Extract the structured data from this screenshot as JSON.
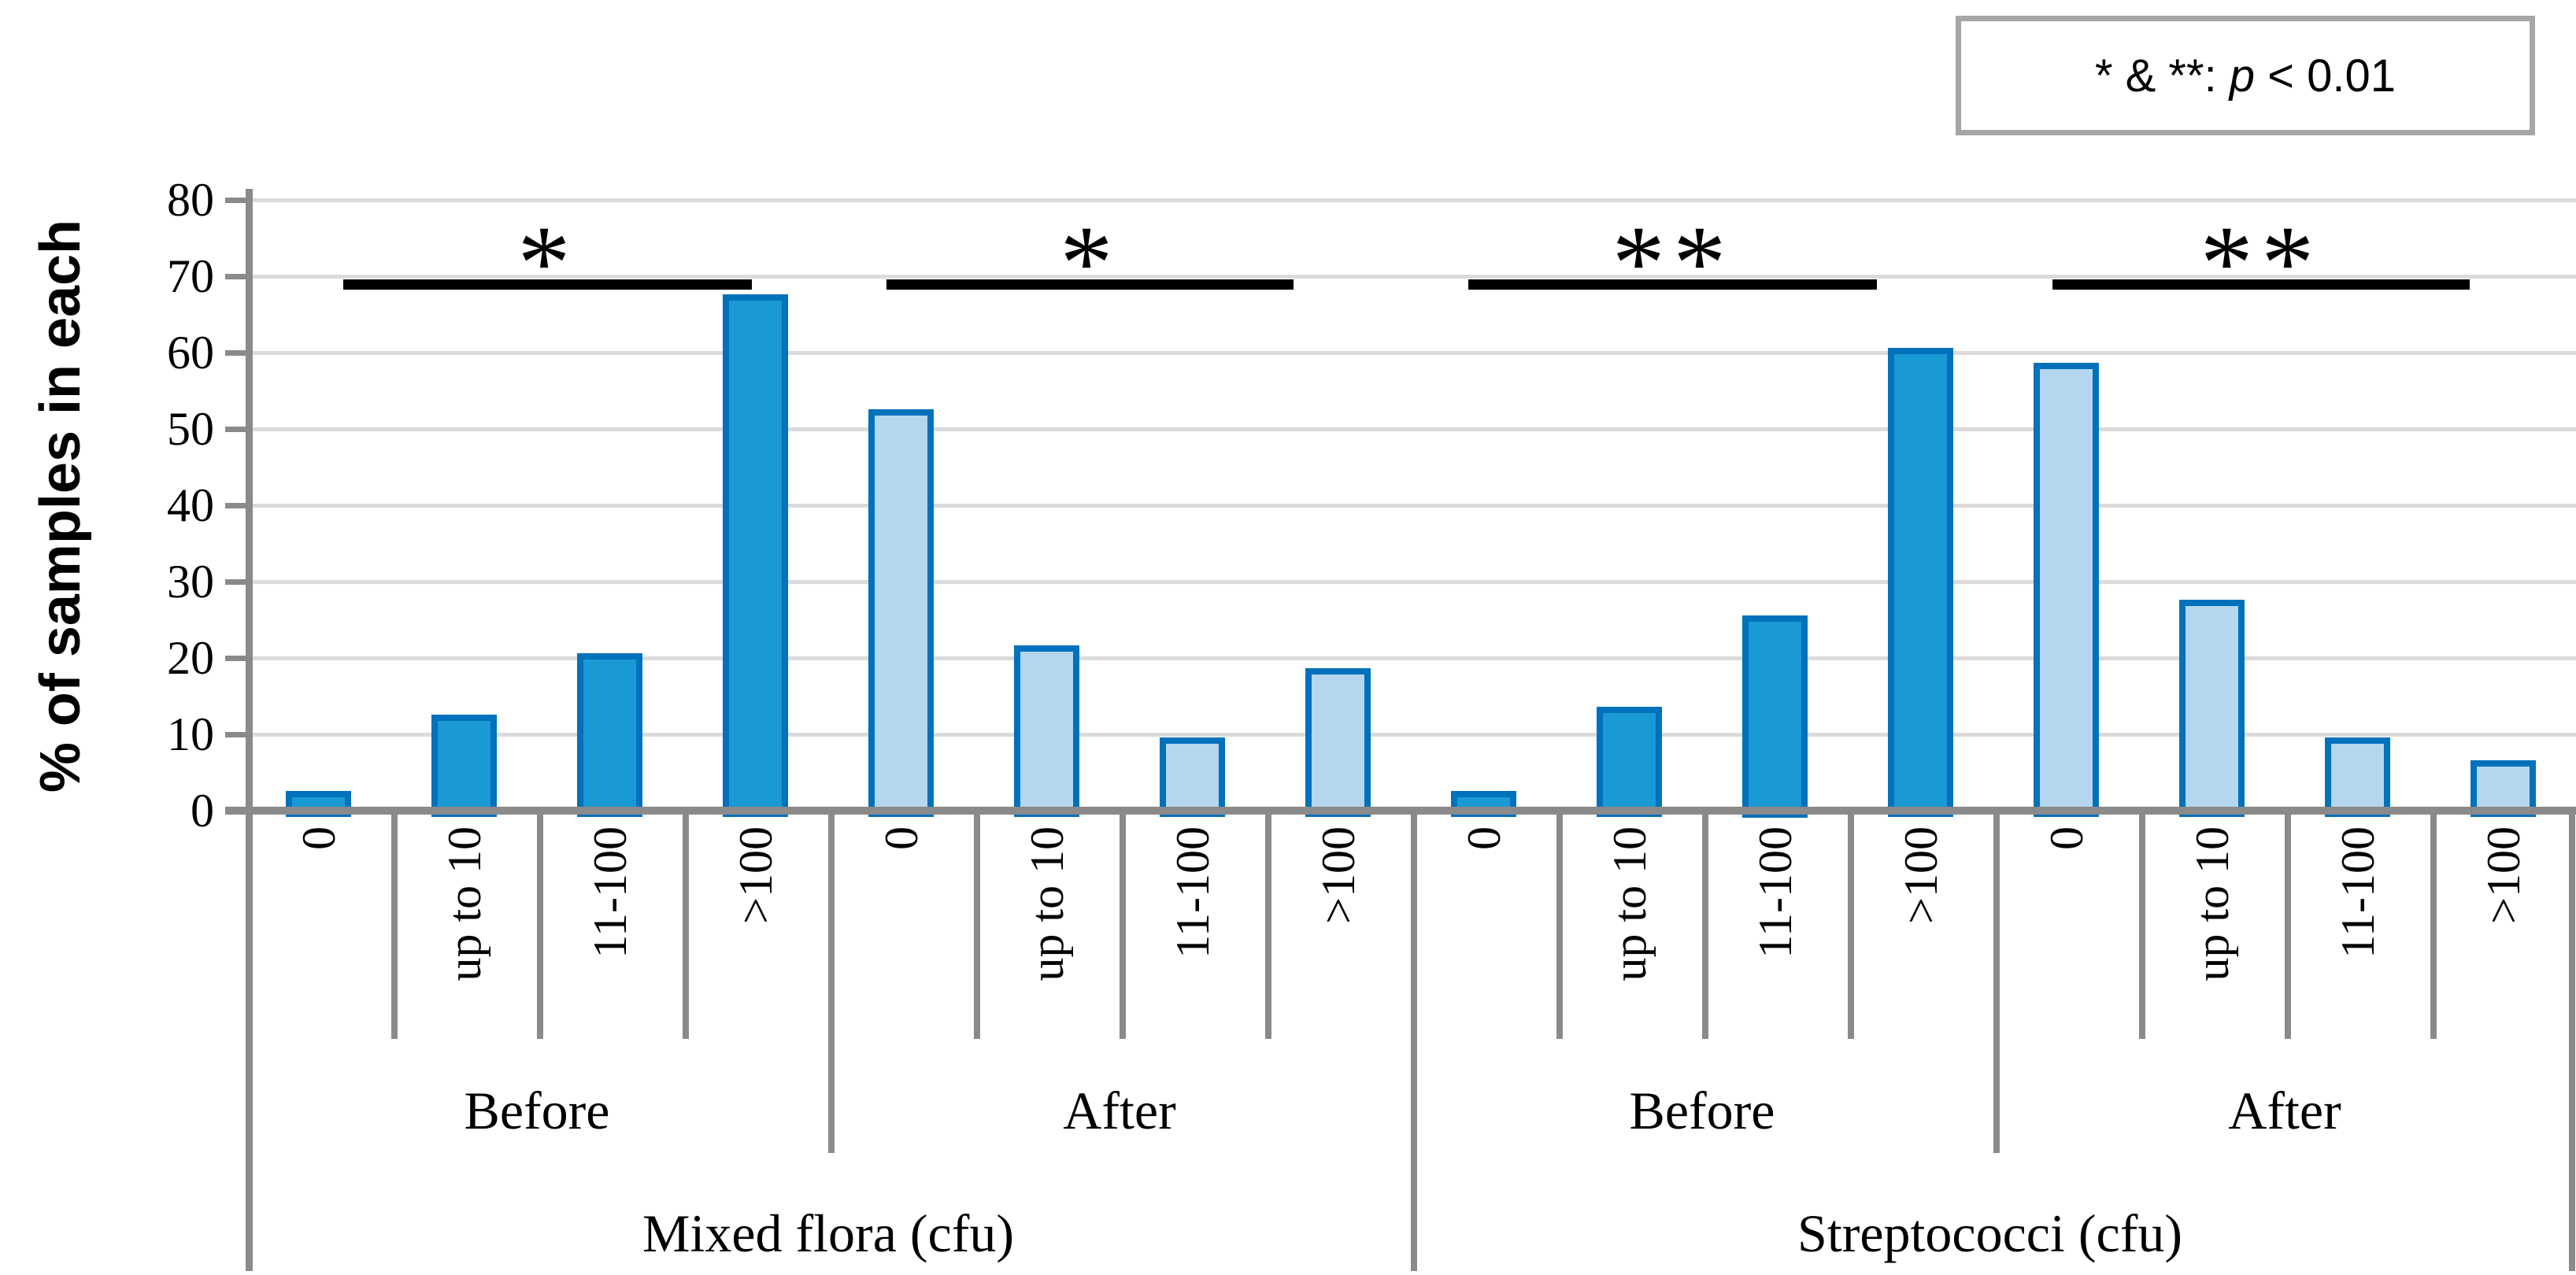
{
  "legend": {
    "prefix": "* & **: ",
    "p_symbol": "p",
    "suffix": " < 0.01"
  },
  "y_axis": {
    "title": "% of samples in each",
    "tick_labels": [
      "80",
      "70",
      "60",
      "50",
      "40",
      "30",
      "20",
      "10",
      "0"
    ],
    "max": 80
  },
  "chart_data": {
    "type": "bar",
    "title": "",
    "xlabel": "",
    "ylabel": "% of samples in each",
    "ylim": [
      0,
      80
    ],
    "grid": true,
    "legend_note": "* & **: p < 0.01",
    "categories": [
      "0",
      "up to 10",
      "11-100",
      ">100"
    ],
    "groups": [
      {
        "label": "Mixed flora (cfu)",
        "subgroups": [
          {
            "label": "Before",
            "style": "dark",
            "significance": "*",
            "values": [
              2,
              12,
              20,
              67
            ]
          },
          {
            "label": "After",
            "style": "light",
            "significance": "*",
            "values": [
              52,
              21,
              9,
              18
            ]
          }
        ]
      },
      {
        "label": "Streptococci (cfu)",
        "subgroups": [
          {
            "label": "Before",
            "style": "dark",
            "significance": "**",
            "values": [
              2,
              13,
              25,
              60
            ]
          },
          {
            "label": "After",
            "style": "light",
            "significance": "**",
            "values": [
              58,
              27,
              9,
              6
            ]
          }
        ]
      }
    ],
    "significance_level_y": 69
  },
  "colors": {
    "dark_bar_fill": "#1A9AD5",
    "light_bar_fill": "#B4D6EE",
    "bar_border": "#0071BB",
    "gridline": "#DBDBDB",
    "axis": "#8A8A8A",
    "legend_border": "#A6A6A6",
    "significance": "#000000"
  }
}
